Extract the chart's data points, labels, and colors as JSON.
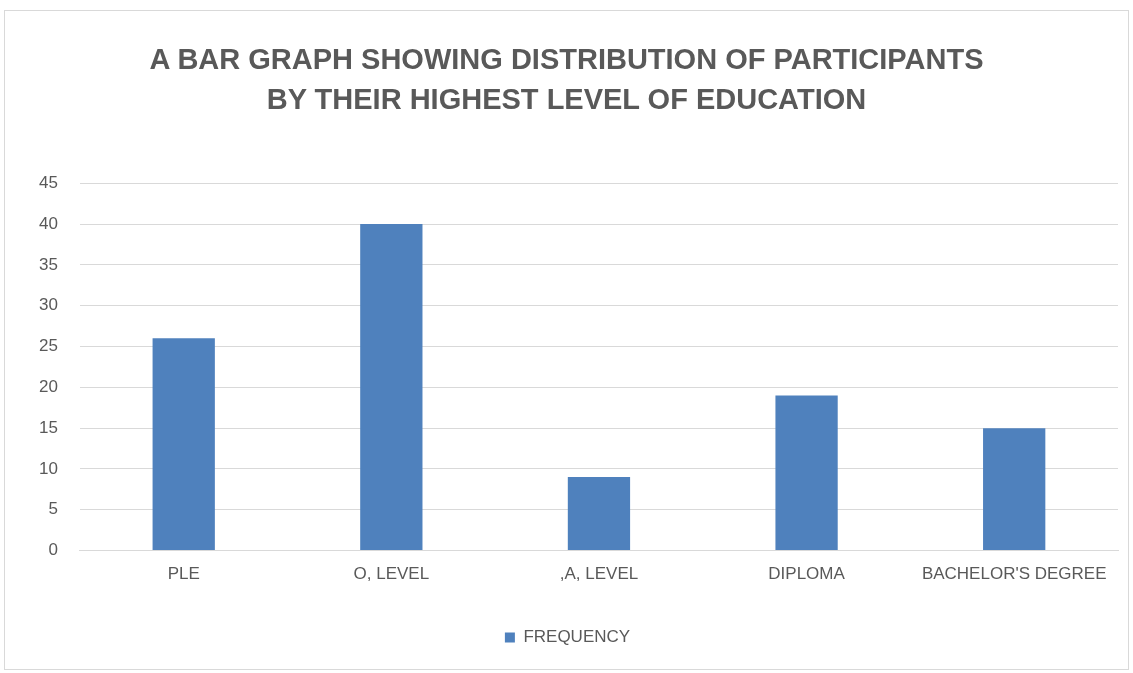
{
  "chart_data": {
    "type": "bar",
    "title": "A BAR GRAPH SHOWING DISTRIBUTION OF PARTICIPANTS BY THEIR HIGHEST LEVEL OF EDUCATION",
    "categories": [
      "PLE",
      "O, LEVEL",
      ",A, LEVEL",
      "DIPLOMA",
      "BACHELOR'S DEGREE"
    ],
    "series": [
      {
        "name": "FREQUENCY",
        "color": "#4f81bd",
        "values": [
          26,
          40,
          9,
          19,
          15
        ]
      }
    ],
    "ylim": [
      0,
      45
    ],
    "yticks": [
      0,
      5,
      10,
      15,
      20,
      25,
      30,
      35,
      40,
      45
    ],
    "grid": "y",
    "legend": "bottom"
  }
}
